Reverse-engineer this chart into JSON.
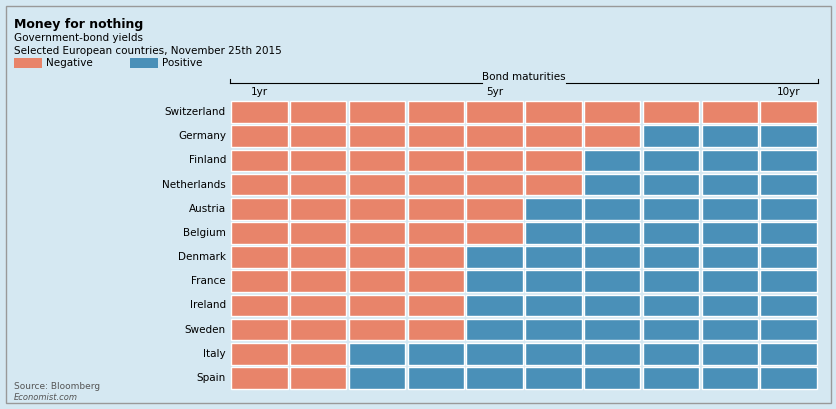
{
  "title_bold": "Money for nothing",
  "title_sub1": "Government-bond yields",
  "title_sub2": "Selected European countries, November 25th 2015",
  "legend_negative": "Negative",
  "legend_positive": "Positive",
  "bond_label": "Bond maturities",
  "x_labels": [
    "1yr",
    "5yr",
    "10yr"
  ],
  "x_label_cols": [
    0,
    4,
    9
  ],
  "countries": [
    "Switzerland",
    "Germany",
    "Finland",
    "Netherlands",
    "Austria",
    "Belgium",
    "Denmark",
    "France",
    "Ireland",
    "Sweden",
    "Italy",
    "Spain"
  ],
  "grid": [
    [
      0,
      0,
      0,
      0,
      0,
      0,
      0,
      0,
      0,
      0
    ],
    [
      0,
      0,
      0,
      0,
      0,
      0,
      0,
      1,
      1,
      1
    ],
    [
      0,
      0,
      0,
      0,
      0,
      0,
      1,
      1,
      1,
      1
    ],
    [
      0,
      0,
      0,
      0,
      0,
      0,
      1,
      1,
      1,
      1
    ],
    [
      0,
      0,
      0,
      0,
      0,
      1,
      1,
      1,
      1,
      1
    ],
    [
      0,
      0,
      0,
      0,
      0,
      1,
      1,
      1,
      1,
      1
    ],
    [
      0,
      0,
      0,
      0,
      1,
      1,
      1,
      1,
      1,
      1
    ],
    [
      0,
      0,
      0,
      0,
      1,
      1,
      1,
      1,
      1,
      1
    ],
    [
      0,
      0,
      0,
      0,
      1,
      1,
      1,
      1,
      1,
      1
    ],
    [
      0,
      0,
      0,
      0,
      1,
      1,
      1,
      1,
      1,
      1
    ],
    [
      0,
      0,
      1,
      1,
      1,
      1,
      1,
      1,
      1,
      1
    ],
    [
      0,
      0,
      1,
      1,
      1,
      1,
      1,
      1,
      1,
      1
    ]
  ],
  "color_negative": "#E8846A",
  "color_positive": "#4A90B8",
  "bg_color": "#D5E8F2",
  "border_color": "#999999",
  "source_text": "Source: Bloomberg",
  "source_sub": "Economist.com",
  "n_cols": 10,
  "n_rows": 12
}
